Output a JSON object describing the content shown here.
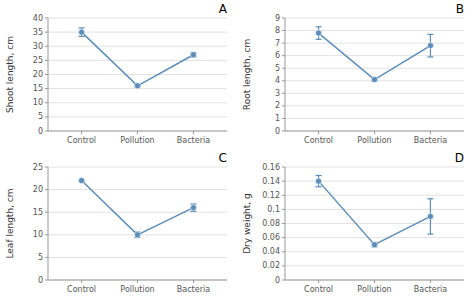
{
  "chart_data": [
    {
      "type": "line",
      "title": "A",
      "ylabel": "Shoot length, cm",
      "categories": [
        "Control",
        "Pollution",
        "Bacteria"
      ],
      "values": [
        35,
        16,
        27
      ],
      "errors": [
        1.5,
        0.4,
        0.8
      ],
      "ylim": [
        0,
        40
      ],
      "yticks": [
        0,
        5,
        10,
        15,
        20,
        25,
        30,
        35,
        40
      ],
      "grid": true,
      "color": "#5B8DB8",
      "marker": "circle"
    },
    {
      "type": "line",
      "title": "B",
      "ylabel": "Root length, cm",
      "categories": [
        "Control",
        "Pollution",
        "Bacteria"
      ],
      "values": [
        7.8,
        4.1,
        6.8
      ],
      "errors": [
        0.5,
        0.15,
        0.9
      ],
      "ylim": [
        0,
        9
      ],
      "yticks": [
        0,
        1,
        2,
        3,
        4,
        5,
        6,
        7,
        8,
        9
      ],
      "grid": true,
      "color": "#5B8DB8",
      "marker": "circle"
    },
    {
      "type": "line",
      "title": "C",
      "ylabel": "Leaf length, cm",
      "categories": [
        "Control",
        "Pollution",
        "Bacteria"
      ],
      "values": [
        22,
        10,
        16
      ],
      "errors": [
        0.0,
        0.6,
        0.8
      ],
      "ylim": [
        0,
        25
      ],
      "yticks": [
        0,
        5,
        10,
        15,
        20,
        25
      ],
      "grid": true,
      "color": "#5B8DB8",
      "marker": "circle"
    },
    {
      "type": "line",
      "title": "D",
      "ylabel": "Dry weight, g",
      "categories": [
        "Control",
        "Pollution",
        "Bacteria"
      ],
      "values": [
        0.14,
        0.05,
        0.09
      ],
      "errors": [
        0.008,
        0.003,
        0.025
      ],
      "ylim": [
        0,
        0.16
      ],
      "yticks": [
        0,
        0.02,
        0.04,
        0.06,
        0.08,
        0.1,
        0.12,
        0.14,
        0.16
      ],
      "grid": true,
      "color": "#5B8DB8",
      "marker": "circle"
    }
  ]
}
